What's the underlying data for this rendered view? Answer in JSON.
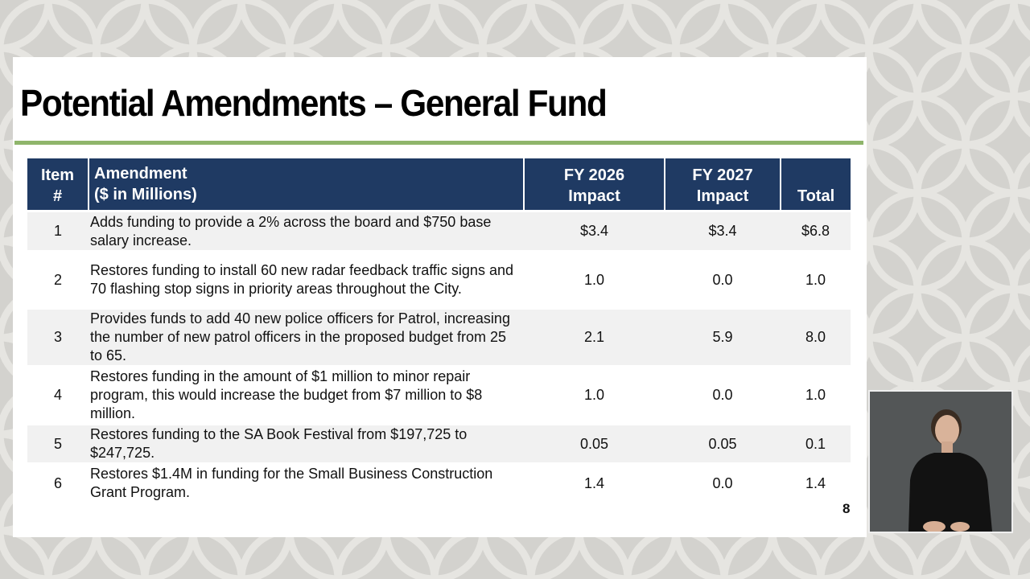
{
  "slide": {
    "title": "Potential Amendments – General Fund",
    "page_number": "8"
  },
  "table": {
    "headers": {
      "item": [
        "Item",
        "#"
      ],
      "amendment": [
        "Amendment",
        "($ in Millions)"
      ],
      "fy2026": [
        "FY 2026",
        "Impact"
      ],
      "fy2027": [
        "FY 2027",
        "Impact"
      ],
      "total": "Total"
    },
    "rows": [
      {
        "item": "1",
        "amendment": "Adds funding to provide a 2% across the board and $750 base salary increase.",
        "fy2026": "$3.4",
        "fy2027": "$3.4",
        "total": "$6.8"
      },
      {
        "item": "2",
        "amendment": "Restores funding to install 60 new radar feedback traffic signs and 70 flashing stop signs in priority areas throughout the City.",
        "fy2026": "1.0",
        "fy2027": "0.0",
        "total": "1.0"
      },
      {
        "item": "3",
        "amendment": "Provides funds to add 40 new police officers for Patrol, increasing the number of new patrol officers in the proposed budget from 25 to 65.",
        "fy2026": "2.1",
        "fy2027": "5.9",
        "total": "8.0"
      },
      {
        "item": "4",
        "amendment": "Restores funding in the amount of $1 million to minor repair program, this would increase the budget from $7 million to $8 million.",
        "fy2026": "1.0",
        "fy2027": "0.0",
        "total": "1.0"
      },
      {
        "item": "5",
        "amendment": "Restores funding to the SA Book Festival from $197,725 to $247,725.",
        "fy2026": "0.05",
        "fy2027": "0.05",
        "total": "0.1"
      },
      {
        "item": "6",
        "amendment": "Restores $1.4M in funding for the Small Business Construction Grant Program.",
        "fy2026": "1.4",
        "fy2027": "0.0",
        "total": "1.4"
      }
    ]
  },
  "colors": {
    "header_bg": "#1f3a63",
    "title_rule": "#8fb56b",
    "row_shade": "#f1f1f1",
    "background": "#d3d2ce"
  },
  "icons": {
    "background_pattern": "circle-lattice-pattern",
    "interpreter_inset": "sign-language-interpreter-video"
  }
}
